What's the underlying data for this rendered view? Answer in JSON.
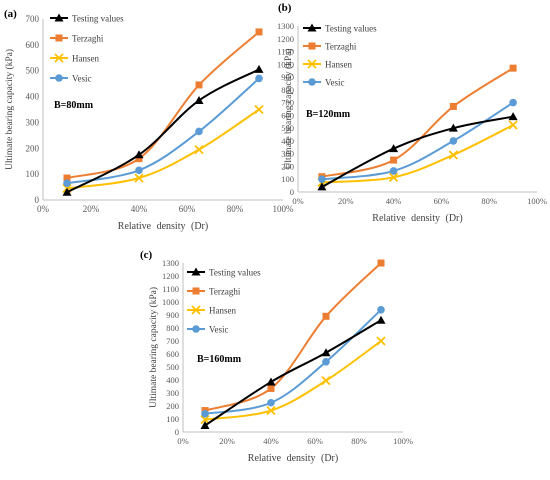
{
  "colors": {
    "Testing values": "#000000",
    "Terzaghi": "#ed7d31",
    "Hansen": "#ffc000",
    "Vesic": "#5b9bd5"
  },
  "chart_data": [
    {
      "type": "line",
      "panel_label": "(a)",
      "annotation": "B=80mm",
      "ylabel": "Ultimate bearing capacity (kPa)",
      "xlabel": "Relative density (Dr)",
      "xlim": [
        0,
        100
      ],
      "ylim": [
        0,
        700
      ],
      "xticks": [
        0,
        20,
        40,
        60,
        80,
        100
      ],
      "xtick_labels": [
        "0%",
        "20%",
        "40%",
        "60%",
        "80%",
        "100%"
      ],
      "yticks": [
        0,
        100,
        200,
        300,
        400,
        500,
        600,
        700
      ],
      "ytick_labels": [
        "0",
        "100",
        "200",
        "300",
        "400",
        "500",
        "600",
        "700"
      ],
      "x": [
        10,
        40,
        65,
        90
      ],
      "series": [
        {
          "name": "Testing values",
          "marker": "triangle",
          "values": [
            30,
            175,
            385,
            505
          ]
        },
        {
          "name": "Terzaghi",
          "marker": "square",
          "values": [
            85,
            160,
            445,
            650
          ]
        },
        {
          "name": "Hansen",
          "marker": "x",
          "values": [
            45,
            85,
            195,
            350
          ]
        },
        {
          "name": "Vesic",
          "marker": "circle",
          "values": [
            65,
            115,
            265,
            470
          ]
        }
      ],
      "legend": "top-left",
      "grid": false
    },
    {
      "type": "line",
      "panel_label": "(b)",
      "annotation": "B=120mm",
      "ylabel": "Ultimate bearing capacity (kPa)",
      "xlabel": "Relative density (Dr)",
      "xlim": [
        0,
        100
      ],
      "ylim": [
        0,
        1300
      ],
      "xticks": [
        0,
        20,
        40,
        60,
        80,
        100
      ],
      "xtick_labels": [
        "0%",
        "20%",
        "40%",
        "60%",
        "80%",
        "100%"
      ],
      "yticks": [
        0,
        100,
        200,
        300,
        400,
        500,
        600,
        700,
        800,
        900,
        1000,
        1100,
        1200,
        1300
      ],
      "ytick_labels": [
        "0",
        "100",
        "200",
        "300",
        "400",
        "500",
        "600",
        "700",
        "800",
        "900",
        "1000",
        "1100",
        "1200",
        "1300"
      ],
      "x": [
        10,
        40,
        65,
        90
      ],
      "series": [
        {
          "name": "Testing values",
          "marker": "triangle",
          "values": [
            40,
            340,
            500,
            590
          ]
        },
        {
          "name": "Terzaghi",
          "marker": "square",
          "values": [
            120,
            250,
            670,
            970
          ]
        },
        {
          "name": "Hansen",
          "marker": "x",
          "values": [
            75,
            115,
            290,
            525
          ]
        },
        {
          "name": "Vesic",
          "marker": "circle",
          "values": [
            100,
            165,
            400,
            700
          ]
        }
      ],
      "legend": "top-left",
      "grid": false
    },
    {
      "type": "line",
      "panel_label": "(c)",
      "annotation": "B=160mm",
      "ylabel": "Ultimate bearing capacity (kPa)",
      "xlabel": "Relative density (Dr)",
      "xlim": [
        0,
        100
      ],
      "ylim": [
        0,
        1300
      ],
      "xticks": [
        0,
        20,
        40,
        60,
        80,
        100
      ],
      "xtick_labels": [
        "0%",
        "20%",
        "40%",
        "60%",
        "80%",
        "100%"
      ],
      "yticks": [
        0,
        100,
        200,
        300,
        400,
        500,
        600,
        700,
        800,
        900,
        1000,
        1100,
        1200,
        1300
      ],
      "ytick_labels": [
        "0",
        "100",
        "200",
        "300",
        "400",
        "500",
        "600",
        "700",
        "800",
        "900",
        "1000",
        "1100",
        "1200",
        "1300"
      ],
      "x": [
        10,
        40,
        65,
        90
      ],
      "series": [
        {
          "name": "Testing values",
          "marker": "triangle",
          "values": [
            50,
            385,
            610,
            860
          ]
        },
        {
          "name": "Terzaghi",
          "marker": "square",
          "values": [
            165,
            335,
            890,
            1300
          ]
        },
        {
          "name": "Hansen",
          "marker": "x",
          "values": [
            95,
            165,
            395,
            700
          ]
        },
        {
          "name": "Vesic",
          "marker": "circle",
          "values": [
            140,
            225,
            540,
            940
          ]
        }
      ],
      "legend": "top-left",
      "grid": false
    }
  ]
}
